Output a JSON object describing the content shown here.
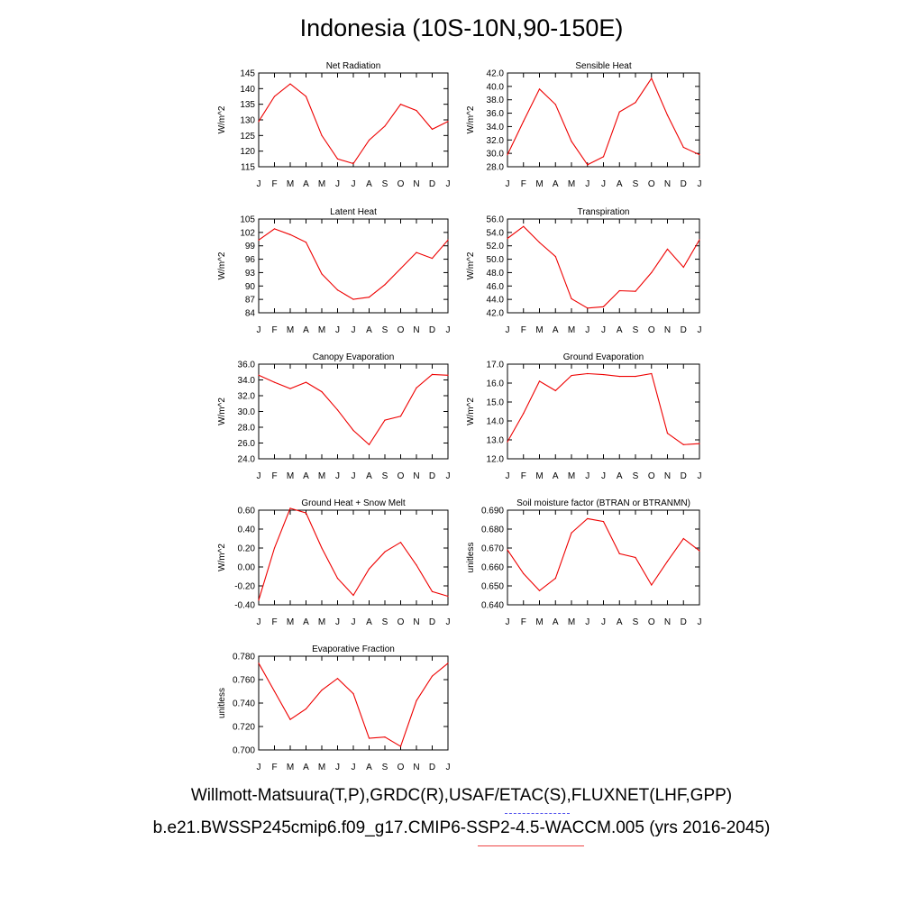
{
  "title": "Indonesia (10S-10N,90-150E)",
  "legend": {
    "obs_label": "Willmott-Matsuura(T,P),GRDC(R),USAF/ETAC(S),FLUXNET(LHF,GPP)",
    "model_label": "b.e21.BWSSP245cmip6.f09_g17.CMIP6-SSP2-4.5-WACCM.005 (yrs 2016-2045)",
    "obs_color": "#5555ee",
    "model_color": "#ee0000"
  },
  "chart_data": [
    {
      "type": "line",
      "title": "Net Radiation",
      "ylabel": "W/m^2",
      "categories": [
        "J",
        "F",
        "M",
        "A",
        "M",
        "J",
        "J",
        "A",
        "S",
        "O",
        "N",
        "D",
        "J"
      ],
      "ylim": [
        115,
        145
      ],
      "yticks": [
        "145",
        "140",
        "135",
        "130",
        "125",
        "120",
        "115"
      ],
      "series": [
        {
          "color": "#ee0000",
          "values": [
            129.5,
            137.5,
            141.5,
            137.5,
            125.0,
            117.5,
            116.0,
            123.5,
            128.0,
            135.0,
            133.0,
            127.0,
            129.5
          ]
        }
      ]
    },
    {
      "type": "line",
      "title": "Sensible Heat",
      "ylabel": "W/m^2",
      "categories": [
        "J",
        "F",
        "M",
        "A",
        "M",
        "J",
        "J",
        "A",
        "S",
        "O",
        "N",
        "D",
        "J"
      ],
      "ylim": [
        28.0,
        42.0
      ],
      "yticks": [
        "42.0",
        "40.0",
        "38.0",
        "36.0",
        "34.0",
        "32.0",
        "30.0",
        "28.0"
      ],
      "series": [
        {
          "color": "#ee0000",
          "values": [
            29.8,
            34.8,
            39.6,
            37.3,
            31.8,
            28.3,
            29.5,
            36.2,
            37.6,
            41.2,
            35.7,
            30.9,
            29.8
          ]
        }
      ]
    },
    {
      "type": "line",
      "title": "Latent Heat",
      "ylabel": "W/m^2",
      "categories": [
        "J",
        "F",
        "M",
        "A",
        "M",
        "J",
        "J",
        "A",
        "S",
        "O",
        "N",
        "D",
        "J"
      ],
      "ylim": [
        84,
        105
      ],
      "yticks": [
        "105",
        "102",
        "99",
        "96",
        "93",
        "90",
        "87",
        "84"
      ],
      "series": [
        {
          "color": "#ee0000",
          "values": [
            100.3,
            102.8,
            101.5,
            99.8,
            92.7,
            89.1,
            87.0,
            87.5,
            90.3,
            93.9,
            97.5,
            96.2,
            100.3
          ]
        }
      ]
    },
    {
      "type": "line",
      "title": "Transpiration",
      "ylabel": "W/m^2",
      "categories": [
        "J",
        "F",
        "M",
        "A",
        "M",
        "J",
        "J",
        "A",
        "S",
        "O",
        "N",
        "D",
        "J"
      ],
      "ylim": [
        42.0,
        56.0
      ],
      "yticks": [
        "56.0",
        "54.0",
        "52.0",
        "50.0",
        "48.0",
        "46.0",
        "44.0",
        "42.0"
      ],
      "series": [
        {
          "color": "#ee0000",
          "values": [
            53.1,
            54.9,
            52.5,
            50.4,
            44.1,
            42.7,
            42.9,
            45.3,
            45.2,
            48.0,
            51.5,
            48.8,
            52.9
          ]
        }
      ]
    },
    {
      "type": "line",
      "title": "Canopy Evaporation",
      "ylabel": "W/m^2",
      "categories": [
        "J",
        "F",
        "M",
        "A",
        "M",
        "J",
        "J",
        "A",
        "S",
        "O",
        "N",
        "D",
        "J"
      ],
      "ylim": [
        24.0,
        36.0
      ],
      "yticks": [
        "36.0",
        "34.0",
        "32.0",
        "30.0",
        "28.0",
        "26.0",
        "24.0"
      ],
      "series": [
        {
          "color": "#ee0000",
          "values": [
            34.6,
            33.7,
            32.9,
            33.7,
            32.5,
            30.2,
            27.6,
            25.8,
            28.9,
            29.4,
            33.0,
            34.7,
            34.6
          ]
        }
      ]
    },
    {
      "type": "line",
      "title": "Ground Evaporation",
      "ylabel": "W/m^2",
      "categories": [
        "J",
        "F",
        "M",
        "A",
        "M",
        "J",
        "J",
        "A",
        "S",
        "O",
        "N",
        "D",
        "J"
      ],
      "ylim": [
        12.0,
        17.0
      ],
      "yticks": [
        "17.0",
        "16.0",
        "15.0",
        "14.0",
        "13.0",
        "12.0"
      ],
      "series": [
        {
          "color": "#ee0000",
          "values": [
            12.9,
            14.4,
            16.1,
            15.6,
            16.4,
            16.5,
            16.45,
            16.35,
            16.35,
            16.5,
            13.35,
            12.75,
            12.8
          ]
        }
      ]
    },
    {
      "type": "line",
      "title": "Ground Heat + Snow Melt",
      "ylabel": "W/m^2",
      "categories": [
        "J",
        "F",
        "M",
        "A",
        "M",
        "J",
        "J",
        "A",
        "S",
        "O",
        "N",
        "D",
        "J"
      ],
      "ylim": [
        -0.4,
        0.6
      ],
      "yticks": [
        "0.60",
        "0.40",
        "0.20",
        "0.00",
        "-0.20",
        "-0.40"
      ],
      "series": [
        {
          "color": "#ee0000",
          "values": [
            -0.35,
            0.2,
            0.62,
            0.57,
            0.2,
            -0.12,
            -0.3,
            -0.02,
            0.16,
            0.26,
            0.02,
            -0.26,
            -0.31
          ]
        }
      ]
    },
    {
      "type": "line",
      "title": "Soil moisture factor (BTRAN or BTRANMN)",
      "ylabel": "unitless",
      "categories": [
        "J",
        "F",
        "M",
        "A",
        "M",
        "J",
        "J",
        "A",
        "S",
        "O",
        "N",
        "D",
        "J"
      ],
      "ylim": [
        0.64,
        0.69
      ],
      "yticks": [
        "0.690",
        "0.680",
        "0.670",
        "0.660",
        "0.650",
        "0.640"
      ],
      "series": [
        {
          "color": "#ee0000",
          "values": [
            0.669,
            0.6565,
            0.6475,
            0.654,
            0.678,
            0.6855,
            0.684,
            0.667,
            0.665,
            0.6505,
            0.663,
            0.675,
            0.6685
          ]
        }
      ]
    },
    {
      "type": "line",
      "title": "Evaporative Fraction",
      "ylabel": "unitless",
      "categories": [
        "J",
        "F",
        "M",
        "A",
        "M",
        "J",
        "J",
        "A",
        "S",
        "O",
        "N",
        "D",
        "J"
      ],
      "ylim": [
        0.7,
        0.78
      ],
      "yticks": [
        "0.780",
        "0.760",
        "0.740",
        "0.720",
        "0.700"
      ],
      "series": [
        {
          "color": "#ee0000",
          "values": [
            0.774,
            0.75,
            0.726,
            0.735,
            0.751,
            0.761,
            0.748,
            0.71,
            0.711,
            0.703,
            0.742,
            0.763,
            0.774
          ]
        }
      ]
    }
  ]
}
